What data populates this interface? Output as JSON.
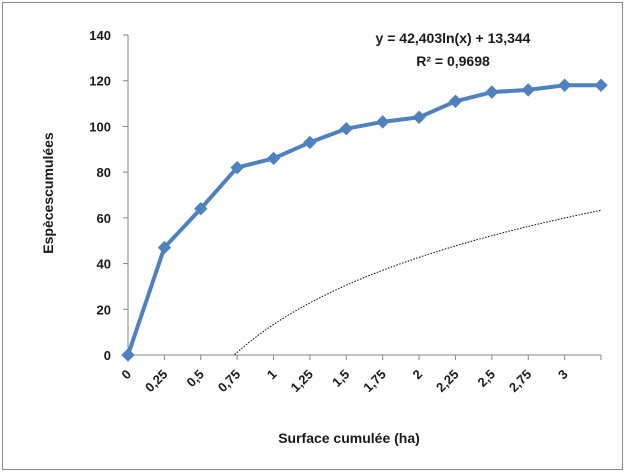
{
  "chart_data": {
    "type": "line",
    "title": "",
    "xlabel": "Surface cumulée (ha)",
    "ylabel": "Espècescumulées",
    "categories": [
      "0",
      "0,25",
      "0,5",
      "0,75",
      "1",
      "1,25",
      "1,5",
      "1,75",
      "2",
      "2,25",
      "2,5",
      "2,75",
      "3",
      ""
    ],
    "x": [
      0,
      0.25,
      0.5,
      0.75,
      1,
      1.25,
      1.5,
      1.75,
      2,
      2.25,
      2.5,
      2.75,
      3,
      3.25
    ],
    "series": [
      {
        "name": "",
        "values": [
          0,
          47,
          64,
          82,
          86,
          93,
          99,
          102,
          104,
          111,
          115,
          116,
          118,
          118
        ],
        "color": "#4f81bd",
        "marker": "diamond"
      }
    ],
    "trendline": {
      "type": "logarithmic",
      "a": 42.403,
      "b": 13.344,
      "equation_label": "y = 42,403ln(x) + 13,344",
      "r2_label": "R² = 0,9698",
      "color": "#000000",
      "style": "dotted"
    },
    "ylim": [
      0,
      140
    ],
    "yticks": [
      "0",
      "20",
      "40",
      "60",
      "80",
      "100",
      "120",
      "140"
    ],
    "grid": false,
    "legend": "none"
  }
}
